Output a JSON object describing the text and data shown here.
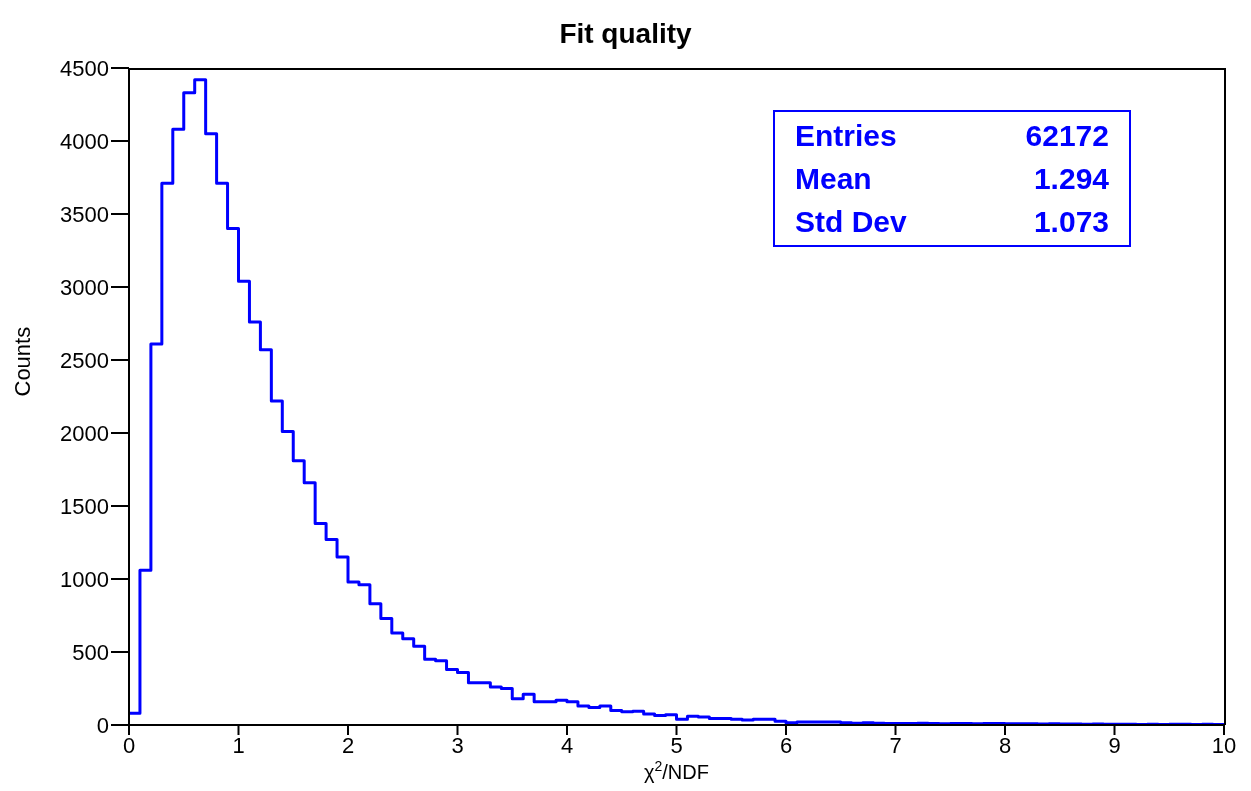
{
  "chart_data": {
    "type": "histogram",
    "title": "Fit quality",
    "xlabel": "χ$^{2}$/NDF",
    "ylabel": "Counts",
    "bins": [
      0,
      0.1,
      0.2,
      0.3,
      0.4,
      0.5,
      0.6,
      0.7,
      0.8,
      0.9,
      1,
      1.1,
      1.2,
      1.3,
      1.4,
      1.5,
      1.6,
      1.7,
      1.8,
      1.9,
      2,
      2.1,
      2.2,
      2.3,
      2.4,
      2.5,
      2.6,
      2.7,
      2.8,
      2.9,
      3,
      3.1,
      3.2,
      3.3,
      3.4,
      3.5,
      3.6,
      3.7,
      3.8,
      3.9,
      4,
      4.1,
      4.2,
      4.3,
      4.4,
      4.5,
      4.6,
      4.7,
      4.8,
      4.9,
      5,
      5.1,
      5.2,
      5.3,
      5.4,
      5.5,
      5.6,
      5.7,
      5.8,
      5.9,
      6,
      6.1,
      6.2,
      6.3,
      6.4,
      6.5,
      6.6,
      6.7,
      6.8,
      6.9,
      7,
      7.1,
      7.2,
      7.3,
      7.4,
      7.5,
      7.6,
      7.7,
      7.8,
      7.9,
      8,
      8.1,
      8.2,
      8.3,
      8.4,
      8.5,
      8.6,
      8.7,
      8.8,
      8.9,
      9,
      9.1,
      9.2,
      9.3,
      9.4,
      9.5,
      9.6,
      9.7,
      9.8,
      9.9,
      10
    ],
    "values": [
      80,
      1060,
      2610,
      3710,
      4080,
      4330,
      4420,
      4050,
      3710,
      3400,
      3040,
      2760,
      2570,
      2220,
      2010,
      1810,
      1660,
      1380,
      1270,
      1150,
      980,
      960,
      830,
      730,
      630,
      590,
      540,
      450,
      440,
      380,
      360,
      290,
      290,
      260,
      250,
      180,
      210,
      160,
      160,
      170,
      160,
      130,
      120,
      130,
      100,
      90,
      95,
      75,
      65,
      70,
      40,
      60,
      55,
      45,
      45,
      40,
      35,
      40,
      40,
      25,
      15,
      20,
      20,
      20,
      20,
      15,
      12,
      15,
      12,
      10,
      10,
      10,
      12,
      10,
      8,
      10,
      10,
      8,
      10,
      10,
      8,
      8,
      8,
      6,
      8,
      6,
      6,
      5,
      6,
      5,
      5,
      5,
      4,
      5,
      4,
      5,
      5,
      4,
      5,
      4
    ],
    "color": "#0000ff",
    "xlim": [
      0,
      10
    ],
    "xticks": [
      0,
      1,
      2,
      3,
      4,
      5,
      6,
      7,
      8,
      9,
      10
    ],
    "ylim": [
      0,
      4500
    ],
    "yticks": [
      0,
      500,
      1000,
      1500,
      2000,
      2500,
      3000,
      3500,
      4000,
      4500
    ],
    "annotations": [
      "Entries",
      "62172",
      "Mean",
      "1.294",
      "Std Dev",
      "1.073"
    ],
    "grid": false
  }
}
